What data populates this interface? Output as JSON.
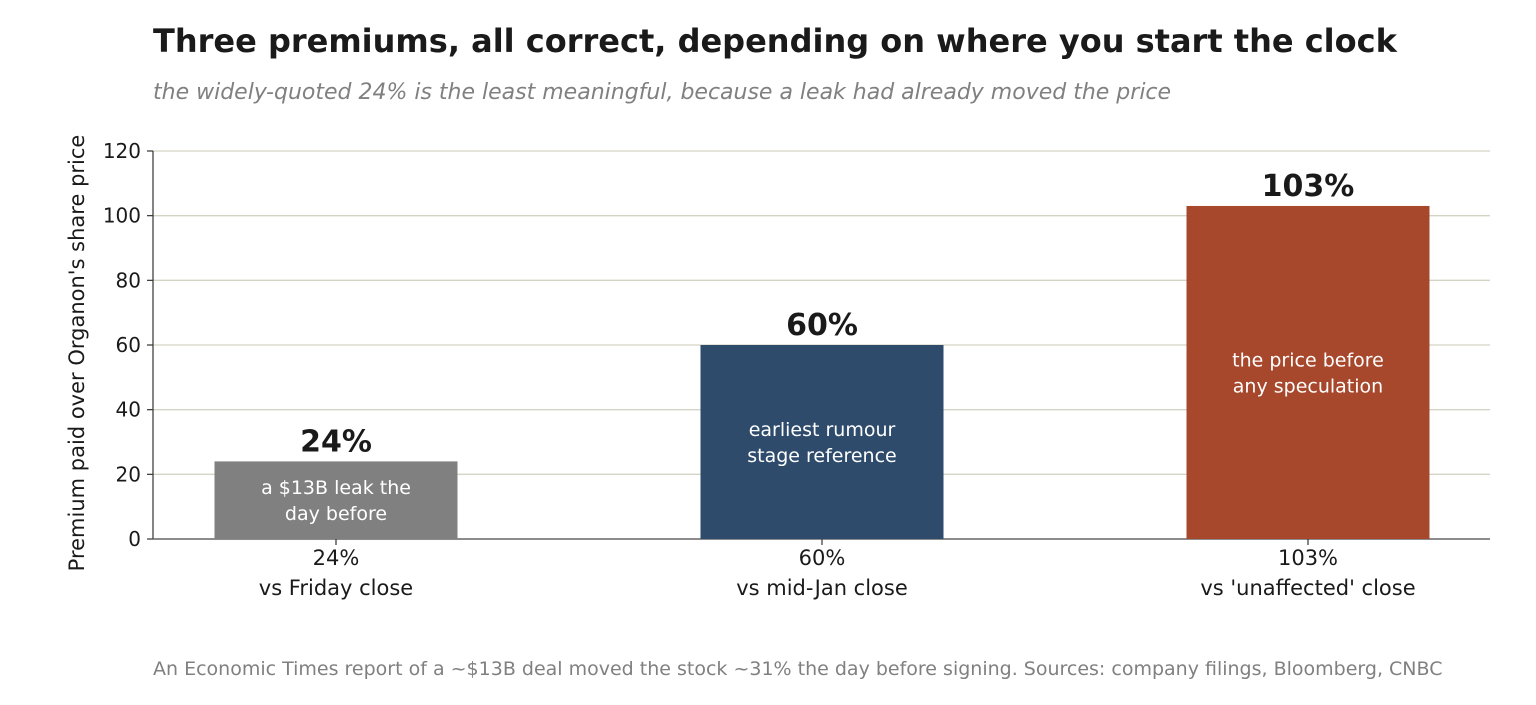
{
  "title": "Three premiums, all correct, depending on where you start the clock",
  "subtitle": "the widely-quoted 24% is the least meaningful, because a leak had already moved the price",
  "footnote": "An Economic Times report of a ~$13B deal moved the stock ~31% the day before signing.  Sources: company filings, Bloomberg, CNBC",
  "chart_data": {
    "type": "bar",
    "categories": [
      "24%\nvs Friday close",
      "60%\nvs mid-Jan close",
      "103%\nvs 'unaffected' close"
    ],
    "values": [
      24,
      60,
      103
    ],
    "value_labels": [
      "24%",
      "60%",
      "103%"
    ],
    "bar_annotations": [
      [
        "a $13B leak the",
        "day before"
      ],
      [
        "earliest rumour",
        "stage reference"
      ],
      [
        "the price before",
        "any speculation"
      ]
    ],
    "bar_colors": [
      "#808080",
      "#2e4b6b",
      "#a7472b"
    ],
    "ylabel": "Premium paid over Organon's share price",
    "xlabel": "",
    "ylim": [
      0,
      120
    ],
    "yticks": [
      0,
      20,
      40,
      60,
      80,
      100,
      120
    ],
    "grid": "horizontal",
    "grid_color": "#d4d4c4"
  }
}
